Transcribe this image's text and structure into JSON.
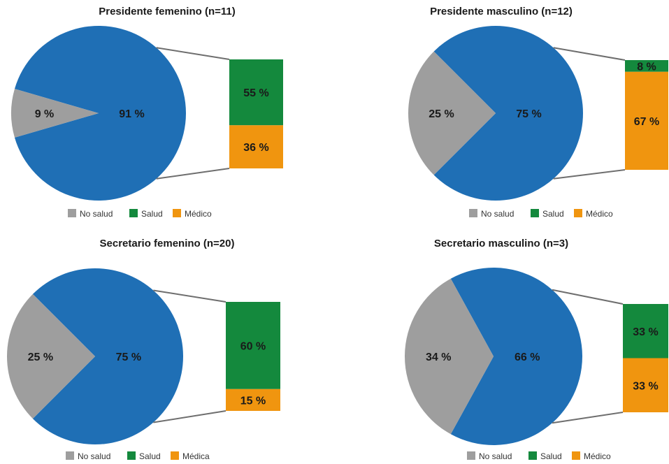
{
  "colors": {
    "no_salud": "#9e9e9e",
    "salud": "#14893d",
    "medico": "#f0950f",
    "pie_main": "#1f6fb5",
    "connector": "#6e6e6e"
  },
  "chart_data": [
    {
      "type": "pie",
      "title": "Presidente femenino (n=11)",
      "pie": [
        {
          "label": "No salud",
          "value": 9,
          "text": "9 %"
        },
        {
          "label": "Salud + Médico",
          "value": 91,
          "text": "91 %"
        }
      ],
      "breakdown": [
        {
          "label": "Salud",
          "value": 55,
          "text": "55 %"
        },
        {
          "label": "Médico",
          "value": 36,
          "text": "36 %"
        }
      ],
      "legend": [
        "No salud",
        "Salud",
        "Médico"
      ],
      "legend_position": "bottom"
    },
    {
      "type": "pie",
      "title": "Presidente masculino (n=12)",
      "pie": [
        {
          "label": "No salud",
          "value": 25,
          "text": "25 %"
        },
        {
          "label": "Salud + Médico",
          "value": 75,
          "text": "75 %"
        }
      ],
      "breakdown": [
        {
          "label": "Salud",
          "value": 8,
          "text": "8 %"
        },
        {
          "label": "Médico",
          "value": 67,
          "text": "67 %"
        }
      ],
      "legend": [
        "No salud",
        "Salud",
        "Médico"
      ],
      "legend_position": "bottom"
    },
    {
      "type": "pie",
      "title": "Secretario femenino (n=20)",
      "pie": [
        {
          "label": "No salud",
          "value": 25,
          "text": "25 %"
        },
        {
          "label": "Salud + Médica",
          "value": 75,
          "text": "75 %"
        }
      ],
      "breakdown": [
        {
          "label": "Salud",
          "value": 60,
          "text": "60 %"
        },
        {
          "label": "Médica",
          "value": 15,
          "text": "15 %"
        }
      ],
      "legend": [
        "No salud",
        "Salud",
        "Médica"
      ],
      "legend_position": "bottom"
    },
    {
      "type": "pie",
      "title": "Secretario masculino (n=3)",
      "pie": [
        {
          "label": "No salud",
          "value": 34,
          "text": "34 %"
        },
        {
          "label": "Salud + Médico",
          "value": 66,
          "text": "66 %"
        }
      ],
      "breakdown": [
        {
          "label": "Salud",
          "value": 33,
          "text": "33 %"
        },
        {
          "label": "Médico",
          "value": 33,
          "text": "33 %"
        }
      ],
      "legend": [
        "No salud",
        "Salud",
        "Médico"
      ],
      "legend_position": "bottom"
    }
  ]
}
